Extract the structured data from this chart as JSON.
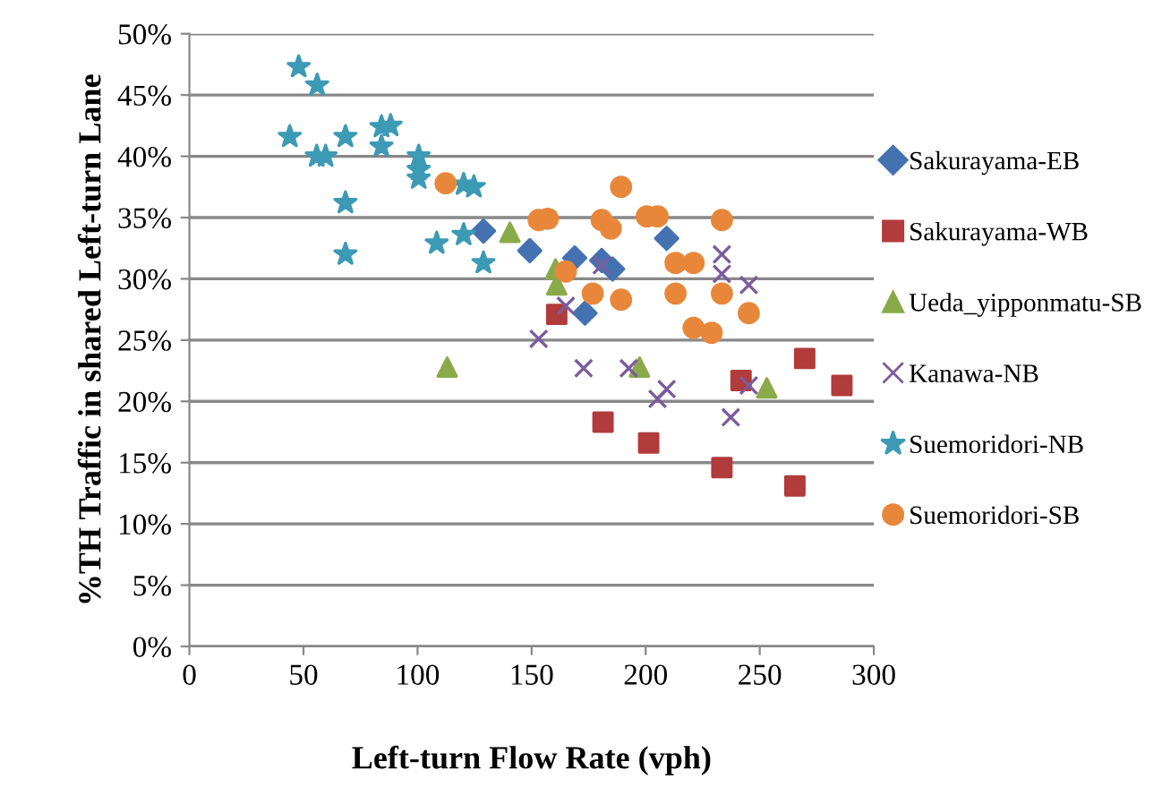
{
  "chart_data": {
    "type": "scatter",
    "xlabel": "Left-turn Flow Rate (vph)",
    "ylabel": "%TH Traffic in shared Left-turn Lane",
    "xlim": [
      0,
      300
    ],
    "xticks": [
      0,
      50,
      100,
      150,
      200,
      250,
      300
    ],
    "ylim": [
      0,
      50
    ],
    "yticks": [
      {
        "value": 0,
        "label": "0%"
      },
      {
        "value": 5,
        "label": "5%"
      },
      {
        "value": 10,
        "label": "10%"
      },
      {
        "value": 15,
        "label": "15%"
      },
      {
        "value": 20,
        "label": "20%"
      },
      {
        "value": 25,
        "label": "25%"
      },
      {
        "value": 30,
        "label": "30%"
      },
      {
        "value": 35,
        "label": "35%"
      },
      {
        "value": 40,
        "label": "40%"
      },
      {
        "value": 45,
        "label": "45%"
      },
      {
        "value": 50,
        "label": "50%"
      }
    ],
    "grid": "y",
    "legend": "right",
    "series": [
      {
        "name": "Sakurayama-EB",
        "color": "#4472b0",
        "marker": "diamond",
        "x": [
          128.9,
          149.2,
          168.9,
          180.7,
          185.5,
          209.2,
          173.4
        ],
        "values": [
          33.9,
          32.3,
          31.7,
          31.5,
          30.8,
          33.3,
          27.2
        ]
      },
      {
        "name": "Sakurayama-WB",
        "color": "#b23b3b",
        "marker": "square",
        "x": [
          161,
          269.7,
          286,
          241.8,
          181.3,
          201.3,
          233.4,
          265.4
        ],
        "values": [
          27.1,
          23.5,
          21.3,
          21.7,
          18.3,
          16.6,
          14.6,
          13.1
        ]
      },
      {
        "name": "Ueda_yipponmatu-SB",
        "color": "#8aaa4a",
        "marker": "triangle",
        "x": [
          113,
          140.5,
          160.5,
          161,
          197.3,
          253.1
        ],
        "values": [
          22.8,
          33.8,
          30.8,
          29.5,
          22.8,
          21.1
        ]
      },
      {
        "name": "Kanawa-NB",
        "color": "#7a5c9c",
        "marker": "cross",
        "x": [
          153.1,
          165,
          180.7,
          172.8,
          192.6,
          205.2,
          209.2,
          233.4,
          233.4,
          245.2,
          245.2,
          237.3
        ],
        "values": [
          25.1,
          27.8,
          31.1,
          22.7,
          22.7,
          20.2,
          21.0,
          32.0,
          30.4,
          29.5,
          21.3,
          18.7
        ]
      },
      {
        "name": "Suemoridori-NB",
        "color": "#3c9ab5",
        "marker": "star",
        "x": [
          47.9,
          56,
          44,
          55.8,
          59.7,
          68.4,
          68.4,
          68.4,
          84.2,
          88.2,
          84.2,
          100.5,
          100.5,
          100.5,
          120.2,
          124.7,
          108.4,
          120.2,
          128.9
        ],
        "values": [
          47.3,
          45.8,
          41.6,
          40.0,
          40.0,
          41.6,
          36.2,
          32.0,
          42.4,
          42.5,
          40.8,
          40.0,
          38.9,
          38.2,
          37.7,
          37.5,
          32.9,
          33.6,
          31.3
        ]
      },
      {
        "name": "Suemoridori-SB",
        "color": "#e8873a",
        "marker": "circle",
        "x": [
          112.3,
          189.2,
          153.1,
          157.1,
          180.7,
          184.7,
          200.5,
          205.2,
          233.4,
          165,
          176.8,
          189.2,
          213.1,
          221,
          213.1,
          233.4,
          245.2,
          221,
          228.9
        ],
        "values": [
          37.8,
          37.5,
          34.8,
          34.9,
          34.8,
          34.1,
          35.1,
          35.1,
          34.8,
          30.6,
          28.8,
          28.3,
          31.3,
          31.3,
          28.8,
          28.8,
          27.2,
          26.0,
          25.6
        ]
      }
    ]
  }
}
